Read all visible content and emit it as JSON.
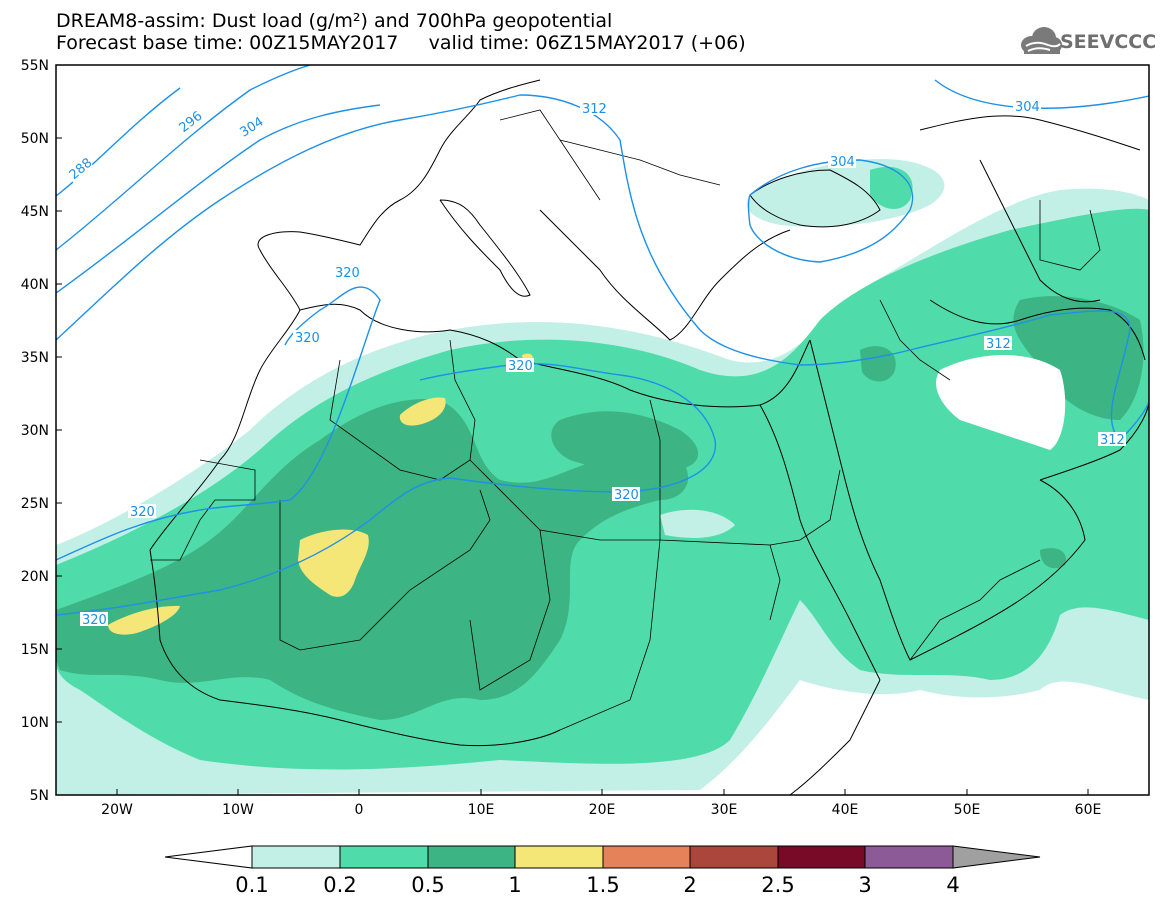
{
  "title": {
    "line1": "DREAM8-assim: Dust load (g/m²) and 700hPa geopotential",
    "line2": "Forecast base time: 00Z15MAY2017     valid time: 06Z15MAY2017 (+06)"
  },
  "logo": {
    "text": "SEEVCCC"
  },
  "axes": {
    "lat_labels": [
      "55N",
      "50N",
      "45N",
      "40N",
      "35N",
      "30N",
      "25N",
      "20N",
      "15N",
      "10N",
      "5N"
    ],
    "lon_labels": [
      "20W",
      "10W",
      "0",
      "10E",
      "20E",
      "30E",
      "40E",
      "50E",
      "60E"
    ]
  },
  "contours": {
    "labels": [
      "288",
      "296",
      "304",
      "312",
      "304",
      "304",
      "320",
      "320",
      "320",
      "320",
      "320",
      "312",
      "312"
    ]
  },
  "colorbar": {
    "levels": [
      "0.1",
      "0.2",
      "0.5",
      "1",
      "1.5",
      "2",
      "2.5",
      "3",
      "4"
    ],
    "colors": [
      "#c3f0e6",
      "#50dcaa",
      "#3cb483",
      "#f5e678",
      "#e6825a",
      "#aa463c",
      "#780a28",
      "#8c5a96",
      "#a0a0a0"
    ],
    "extend_left_color": "#ffffff"
  },
  "colors": {
    "contour": "#1e90e8",
    "coast": "#000000"
  }
}
